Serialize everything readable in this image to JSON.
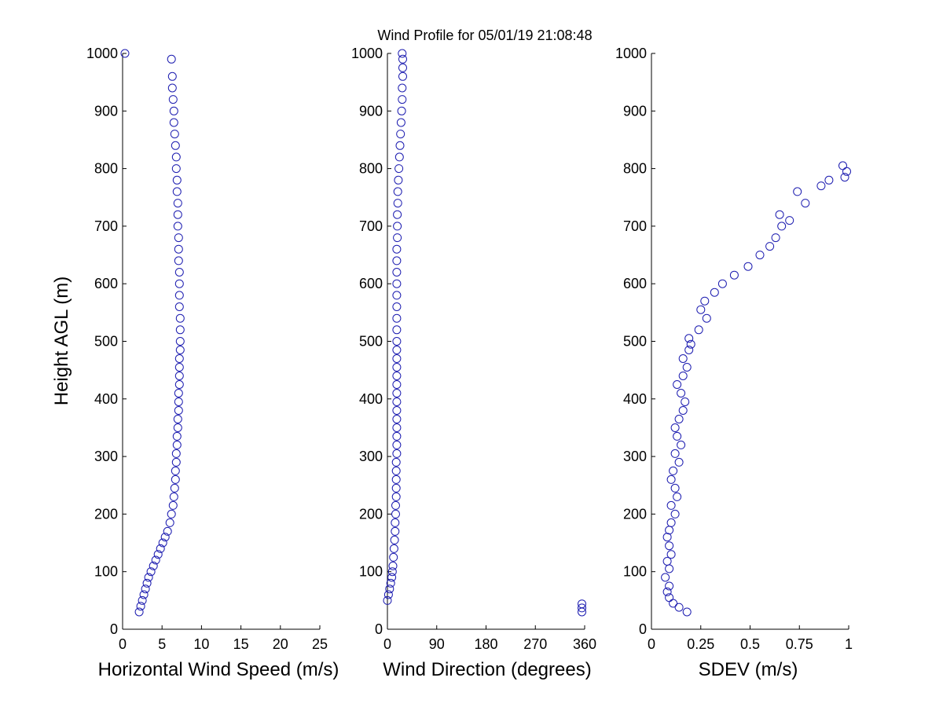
{
  "title": "Wind Profile for  05/01/19 21:08:48",
  "ylabel": "Height AGL (m)",
  "chart_data": [
    {
      "type": "scatter",
      "xlabel": "Horizontal Wind Speed (m/s)",
      "ylabel": "Height AGL (m)",
      "xlim": [
        0,
        25
      ],
      "ylim": [
        0,
        1000
      ],
      "xticks": [
        0,
        5,
        10,
        15,
        20,
        25
      ],
      "xtick_labels": [
        "0",
        "5",
        "10",
        "15",
        "20",
        "25"
      ],
      "yticks": [
        0,
        100,
        200,
        300,
        400,
        500,
        600,
        700,
        800,
        900,
        1000
      ],
      "ytick_labels": [
        "0",
        "100",
        "200",
        "300",
        "400",
        "500",
        "600",
        "700",
        "800",
        "900",
        "1000"
      ],
      "grid": false,
      "marker": "open-circle",
      "color": "#1c1cb0",
      "x": [
        2.1,
        2.3,
        2.5,
        2.7,
        2.9,
        3.1,
        3.3,
        3.6,
        3.9,
        4.2,
        4.5,
        4.8,
        5.1,
        5.4,
        5.7,
        6.0,
        6.2,
        6.4,
        6.5,
        6.6,
        6.7,
        6.7,
        6.8,
        6.8,
        6.9,
        6.9,
        7.0,
        7.0,
        7.1,
        7.1,
        7.1,
        7.2,
        7.2,
        7.2,
        7.2,
        7.3,
        7.3,
        7.3,
        7.3,
        7.2,
        7.2,
        7.2,
        7.2,
        7.1,
        7.1,
        7.1,
        7.0,
        7.0,
        7.0,
        6.9,
        6.9,
        6.8,
        6.8,
        6.7,
        6.6,
        6.5,
        6.5,
        6.4,
        6.3,
        6.3,
        6.2,
        0.3
      ],
      "y": [
        30,
        40,
        50,
        60,
        70,
        80,
        90,
        100,
        110,
        120,
        130,
        140,
        150,
        160,
        170,
        185,
        200,
        215,
        230,
        245,
        260,
        275,
        290,
        305,
        320,
        335,
        350,
        365,
        380,
        395,
        410,
        425,
        440,
        455,
        470,
        485,
        500,
        520,
        540,
        560,
        580,
        600,
        620,
        640,
        660,
        680,
        700,
        720,
        740,
        760,
        780,
        800,
        820,
        840,
        860,
        880,
        900,
        920,
        940,
        960,
        990,
        1000
      ]
    },
    {
      "type": "scatter",
      "xlabel": "Wind Direction (degrees)",
      "ylabel": "",
      "xlim": [
        0,
        360
      ],
      "ylim": [
        0,
        1000
      ],
      "xticks": [
        0,
        90,
        180,
        270,
        360
      ],
      "xtick_labels": [
        "0",
        "90",
        "180",
        "270",
        "360"
      ],
      "yticks": [
        0,
        100,
        200,
        300,
        400,
        500,
        600,
        700,
        800,
        900,
        1000
      ],
      "ytick_labels": [
        "0",
        "100",
        "200",
        "300",
        "400",
        "500",
        "600",
        "700",
        "800",
        "900",
        "1000"
      ],
      "grid": false,
      "marker": "open-circle",
      "color": "#1c1cb0",
      "x": [
        355,
        355,
        355,
        0,
        2,
        4,
        6,
        8,
        9,
        10,
        11,
        12,
        13,
        14,
        14,
        15,
        15,
        16,
        16,
        16,
        16,
        16,
        17,
        17,
        17,
        17,
        17,
        17,
        17,
        17,
        17,
        17,
        17,
        17,
        17,
        17,
        17,
        17,
        17,
        17,
        17,
        17,
        17,
        17,
        18,
        18,
        18,
        19,
        19,
        20,
        21,
        22,
        23,
        24,
        25,
        26,
        27,
        27,
        28,
        28,
        28,
        27
      ],
      "y": [
        30,
        37,
        44,
        50,
        60,
        70,
        80,
        90,
        100,
        110,
        125,
        140,
        155,
        170,
        185,
        200,
        215,
        230,
        245,
        260,
        275,
        290,
        305,
        320,
        335,
        350,
        365,
        380,
        395,
        410,
        425,
        440,
        455,
        470,
        485,
        500,
        520,
        540,
        560,
        580,
        600,
        620,
        640,
        660,
        680,
        700,
        720,
        740,
        760,
        780,
        800,
        820,
        840,
        860,
        880,
        900,
        920,
        940,
        960,
        975,
        990,
        1000
      ]
    },
    {
      "type": "scatter",
      "xlabel": "SDEV  (m/s)",
      "ylabel": "",
      "xlim": [
        0,
        1
      ],
      "ylim": [
        0,
        1000
      ],
      "xticks": [
        0,
        0.25,
        0.5,
        0.75,
        1
      ],
      "xtick_labels": [
        "0",
        "0.25",
        "0.5",
        "0.75",
        "1"
      ],
      "yticks": [
        0,
        100,
        200,
        300,
        400,
        500,
        600,
        700,
        800,
        900,
        1000
      ],
      "ytick_labels": [
        "0",
        "100",
        "200",
        "300",
        "400",
        "500",
        "600",
        "700",
        "800",
        "900",
        "1000"
      ],
      "grid": false,
      "marker": "open-circle",
      "color": "#1c1cb0",
      "x": [
        0.18,
        0.14,
        0.11,
        0.09,
        0.08,
        0.09,
        0.07,
        0.09,
        0.08,
        0.1,
        0.09,
        0.08,
        0.09,
        0.1,
        0.12,
        0.1,
        0.13,
        0.12,
        0.1,
        0.11,
        0.14,
        0.12,
        0.15,
        0.13,
        0.12,
        0.14,
        0.16,
        0.17,
        0.15,
        0.13,
        0.16,
        0.18,
        0.16,
        0.19,
        0.2,
        0.19,
        0.24,
        0.28,
        0.25,
        0.27,
        0.32,
        0.36,
        0.42,
        0.49,
        0.55,
        0.6,
        0.63,
        0.66,
        0.7,
        0.65,
        0.78,
        0.74,
        0.86,
        0.9,
        0.98,
        0.99,
        0.97
      ],
      "y": [
        30,
        38,
        45,
        55,
        65,
        75,
        90,
        105,
        118,
        130,
        145,
        160,
        172,
        185,
        200,
        215,
        230,
        245,
        260,
        275,
        290,
        305,
        320,
        335,
        350,
        365,
        380,
        395,
        410,
        425,
        440,
        455,
        470,
        485,
        495,
        505,
        520,
        540,
        555,
        570,
        585,
        600,
        615,
        630,
        650,
        665,
        680,
        700,
        710,
        720,
        740,
        760,
        770,
        780,
        785,
        795,
        805
      ]
    }
  ]
}
